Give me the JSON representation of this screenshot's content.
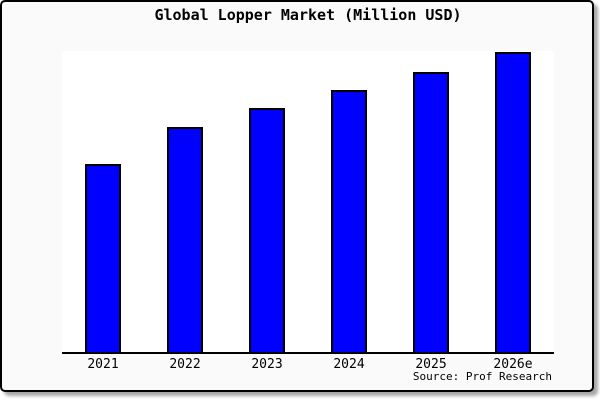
{
  "panel": {
    "background": "#fafafa",
    "plot_background": "#ffffff",
    "frame_border_color": "#000000"
  },
  "chart_data": {
    "type": "bar",
    "title": "Global Lopper Market (Million USD)",
    "categories": [
      "2021",
      "2022",
      "2023",
      "2024",
      "2025",
      "2026e"
    ],
    "values": [
      62.7,
      75.0,
      81.3,
      87.3,
      93.3,
      100.0
    ],
    "values_note": "no numeric y-axis shown in chart; values are bar heights relative to tallest bar (2026e = 100)",
    "xlabel": "",
    "ylabel": "",
    "ylim": [
      0,
      100.5
    ],
    "grid": false,
    "legend": false,
    "bar_color": "#0000ff",
    "bar_border_color": "#000000",
    "axis_line_color": "#000000"
  },
  "source": {
    "label": "Source: Prof Research"
  }
}
